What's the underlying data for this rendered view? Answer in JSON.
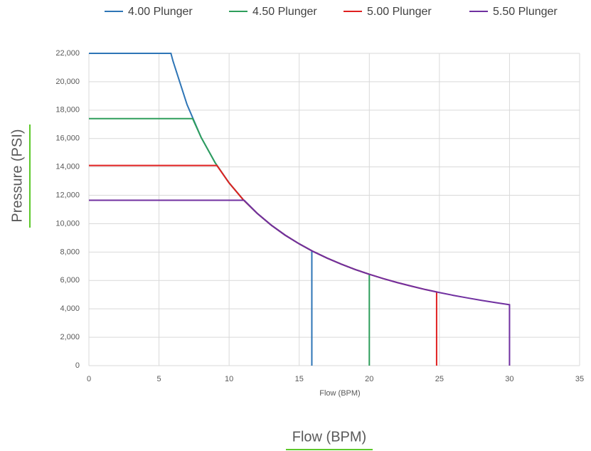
{
  "chart_data": {
    "type": "line",
    "xlabel": "Flow (BPM)",
    "ylabel": "Pressure (PSI)",
    "outer_xlabel": "Flow (BPM)",
    "xlim": [
      0,
      35
    ],
    "xticks": [
      0,
      5,
      10,
      15,
      20,
      25,
      30,
      35
    ],
    "ylim": [
      0,
      22000
    ],
    "yticks": [
      0,
      {
        "value": 2000,
        "label": "2,000"
      },
      {
        "value": 4000,
        "label": "4,000"
      },
      {
        "value": 6000,
        "label": "6,000"
      },
      {
        "value": 8000,
        "label": "8,000"
      },
      {
        "value": 10000,
        "label": "10,000"
      },
      {
        "value": 12000,
        "label": "12,000"
      },
      {
        "value": 14000,
        "label": "14,000"
      },
      {
        "value": 16000,
        "label": "16,000"
      },
      {
        "value": 18000,
        "label": "18,000"
      },
      {
        "value": 20000,
        "label": "20,000"
      },
      {
        "value": 22000,
        "label": "22,000"
      }
    ],
    "grid": true,
    "legend": "top",
    "series": [
      {
        "name": "4.00 Plunger",
        "color": "#2e75b6",
        "x": [
          0,
          5.85,
          6,
          7,
          8,
          9,
          10,
          11,
          12,
          13,
          14,
          15,
          15.9,
          15.9
        ],
        "values": [
          22000,
          22000,
          21450,
          18390,
          16090,
          14300,
          12870,
          11700,
          10730,
          9900,
          9190,
          8580,
          8090,
          0
        ]
      },
      {
        "name": "4.50 Plunger",
        "color": "#2e9e5b",
        "x": [
          0,
          7.4,
          8,
          9,
          10,
          11,
          12,
          13,
          14,
          15,
          16,
          17,
          18,
          19,
          20,
          20
        ],
        "values": [
          17400,
          17400,
          16090,
          14300,
          12870,
          11700,
          10730,
          9900,
          9190,
          8580,
          8040,
          7570,
          7150,
          6770,
          6435,
          0
        ]
      },
      {
        "name": "5.00 Plunger",
        "color": "#e02020",
        "x": [
          0,
          9.13,
          10,
          11,
          12,
          13,
          14,
          15,
          16,
          17,
          18,
          19,
          20,
          21,
          22,
          23,
          24,
          24.8,
          24.8
        ],
        "values": [
          14100,
          14100,
          12870,
          11700,
          10730,
          9900,
          9190,
          8580,
          8040,
          7570,
          7150,
          6770,
          6435,
          6130,
          5850,
          5600,
          5360,
          5190,
          0
        ]
      },
      {
        "name": "5.50 Plunger",
        "color": "#7030a0",
        "x": [
          0,
          11.07,
          12,
          13,
          14,
          15,
          16,
          17,
          18,
          19,
          20,
          21,
          22,
          23,
          24,
          25,
          26,
          27,
          28,
          29,
          30,
          30
        ],
        "values": [
          11650,
          11650,
          10730,
          9900,
          9190,
          8580,
          8040,
          7570,
          7150,
          6770,
          6435,
          6130,
          5850,
          5600,
          5360,
          5150,
          4950,
          4770,
          4600,
          4440,
          4290,
          0
        ]
      }
    ]
  }
}
